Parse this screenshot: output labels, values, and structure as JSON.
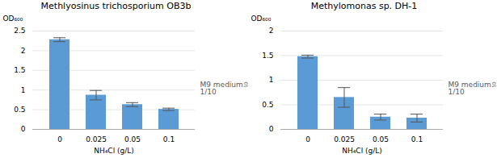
{
  "chart_data": [
    {
      "type": "bar",
      "title": "Methlyosinus trichosporium OB3b",
      "categories": [
        "0",
        "0.025",
        "0.05",
        "0.1"
      ],
      "values": [
        2.28,
        0.87,
        0.63,
        0.51
      ],
      "errors": [
        0.05,
        0.12,
        0.05,
        0.03
      ],
      "color": "#5b9bd5",
      "xlabel": "NH₄Cl (g/L)",
      "ylabel": "OD₆₀₀",
      "ylim": [
        0,
        2.5
      ],
      "yticks": [
        0,
        0.5,
        1,
        1.5,
        2,
        2.5
      ],
      "grid": true,
      "annotation": "M9 medium의\n1/10"
    },
    {
      "type": "bar",
      "title": "Methylomonas sp. DH-1",
      "categories": [
        "0",
        "0.025",
        "0.05",
        "0.1"
      ],
      "values": [
        1.48,
        0.65,
        0.25,
        0.23
      ],
      "errors": [
        0.03,
        0.2,
        0.06,
        0.08
      ],
      "color": "#5b9bd5",
      "xlabel": "NH₄Cl (g/L)",
      "ylabel": "OD₆₀₀",
      "ylim": [
        0,
        2
      ],
      "yticks": [
        0,
        0.5,
        1,
        1.5,
        2
      ],
      "grid": true,
      "annotation": "M9 medium의\n1/10"
    }
  ]
}
